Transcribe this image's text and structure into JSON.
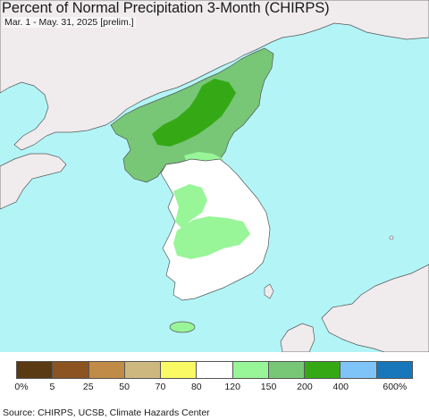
{
  "title": "Percent of Normal Precipitation 3-Month (CHIRPS)",
  "subtitle": "Mar. 1 - May. 31, 2025 [prelim.]",
  "source": "Source: CHIRPS, UCSB, Climate Hazards Center",
  "colors": {
    "ocean": "#b3f5f7",
    "land_outside": "#f0ecee",
    "border": "#555555"
  },
  "legend": {
    "colors": [
      "#5a3a12",
      "#8b5420",
      "#c08b46",
      "#cdb97f",
      "#fafa64",
      "#ffffff",
      "#98f598",
      "#77c777",
      "#35a915",
      "#7ec4f8",
      "#1877ba"
    ],
    "labels": [
      "0%",
      "5",
      "25",
      "50",
      "70",
      "80",
      "120",
      "150",
      "200",
      "400",
      "600%"
    ]
  }
}
